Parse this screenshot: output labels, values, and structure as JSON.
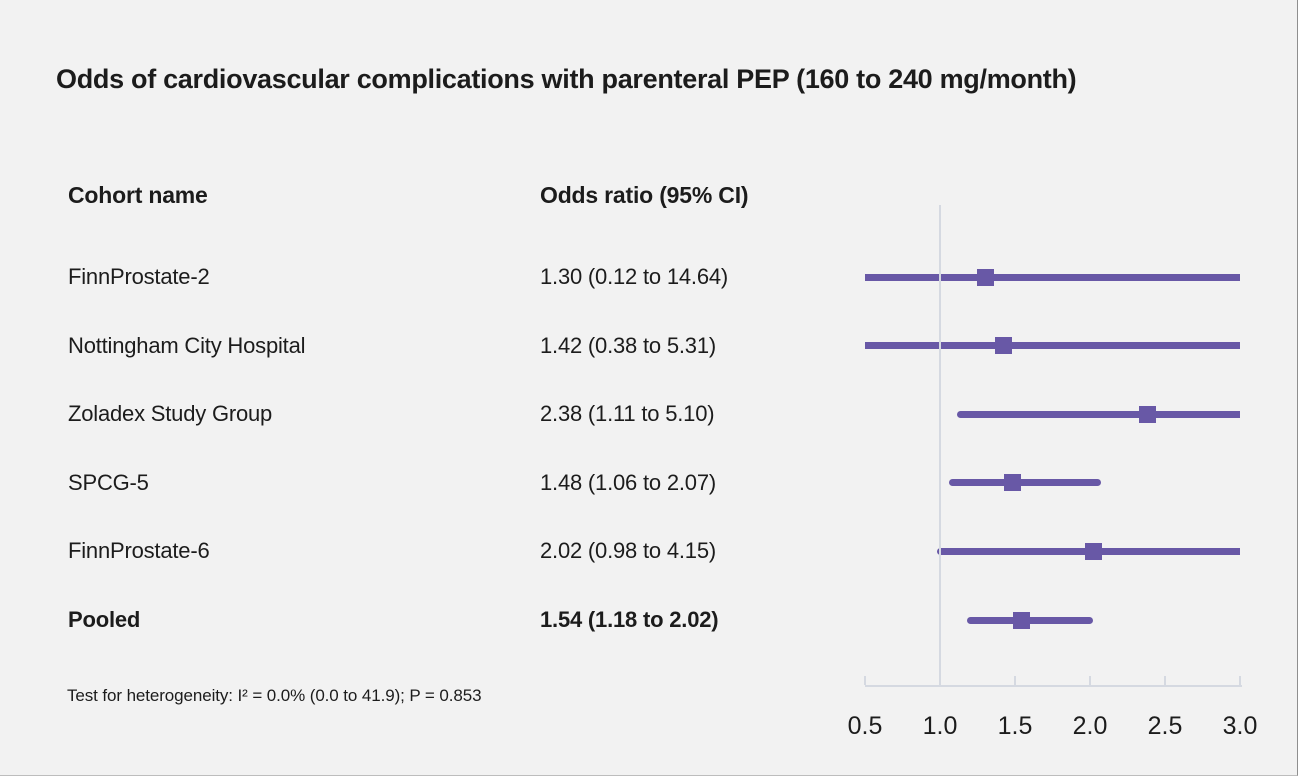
{
  "title": "Odds of cardiovascular complications with parenteral PEP (160 to 240 mg/month)",
  "table": {
    "cohort_header": "Cohort name",
    "or_header": "Odds ratio (95% CI)"
  },
  "footnote": "Test for heterogeneity: I² = 0.0% (0.0 to 41.9); P = 0.853",
  "colors": {
    "background": "#f2f2f2",
    "marker_purple": "#6858a6",
    "line_purple": "#6858a6",
    "axis_gray": "#d5d9e1",
    "text": "#1c1c1c"
  },
  "chart_data": {
    "type": "forest",
    "x_axis": {
      "range": [
        0.5,
        3.0
      ],
      "ticks": [
        0.5,
        1.0,
        1.5,
        2.0,
        2.5,
        3.0
      ],
      "tick_labels": [
        "0.5",
        "1.0",
        "1.5",
        "2.0",
        "2.5",
        "3.0"
      ],
      "scale": "linear",
      "reference_line": 1.0
    },
    "rows": [
      {
        "label": "FinnProstate-2",
        "or": 1.3,
        "ci_low": 0.12,
        "ci_high": 14.64,
        "or_text": "1.30 (0.12 to 14.64)",
        "bold": false
      },
      {
        "label": "Nottingham City Hospital",
        "or": 1.42,
        "ci_low": 0.38,
        "ci_high": 5.31,
        "or_text": "1.42 (0.38 to 5.31)",
        "bold": false
      },
      {
        "label": "Zoladex Study Group",
        "or": 2.38,
        "ci_low": 1.11,
        "ci_high": 5.1,
        "or_text": "2.38 (1.11 to 5.10)",
        "bold": false
      },
      {
        "label": "SPCG-5",
        "or": 1.48,
        "ci_low": 1.06,
        "ci_high": 2.07,
        "or_text": "1.48 (1.06 to 2.07)",
        "bold": false
      },
      {
        "label": "FinnProstate-6",
        "or": 2.02,
        "ci_low": 0.98,
        "ci_high": 4.15,
        "or_text": "2.02 (0.98 to 4.15)",
        "bold": false
      },
      {
        "label": "Pooled",
        "or": 1.54,
        "ci_low": 1.18,
        "ci_high": 2.02,
        "or_text": "1.54 (1.18 to 2.02)",
        "bold": true
      }
    ]
  }
}
